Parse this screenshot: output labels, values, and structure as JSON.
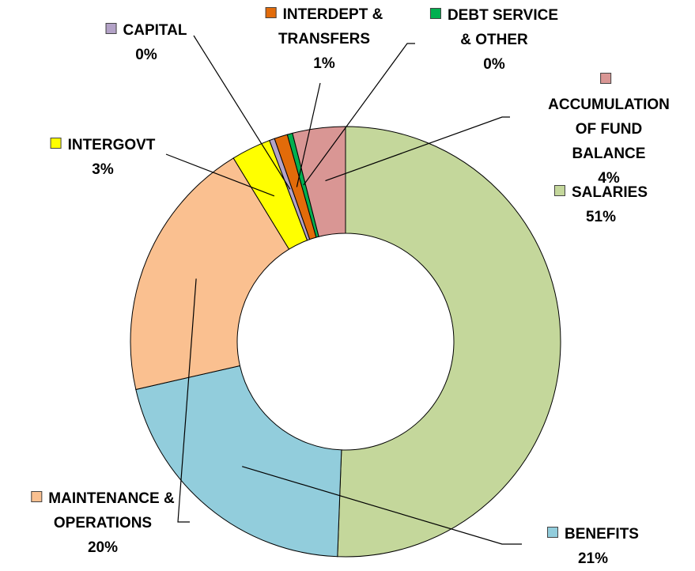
{
  "chart_data": {
    "type": "donut",
    "categories": [
      "SALARIES",
      "BENEFITS",
      "MAINTENANCE &\nOPERATIONS",
      "INTERGOVT",
      "CAPITAL",
      "INTERDEPT &\nTRANSFERS",
      "DEBT SERVICE\n& OTHER",
      "ACCUMULATION\nOF FUND\nBALANCE"
    ],
    "values": [
      51,
      21,
      20,
      3,
      0.4,
      1,
      0.4,
      4
    ],
    "value_labels": [
      "51%",
      "21%",
      "20%",
      "3%",
      "0%",
      "1%",
      "0%",
      "4%"
    ],
    "colors": [
      "#c4d79b",
      "#92cddc",
      "#fac090",
      "#ffff00",
      "#b3a2c7",
      "#e26b0a",
      "#00b050",
      "#d99694"
    ]
  }
}
